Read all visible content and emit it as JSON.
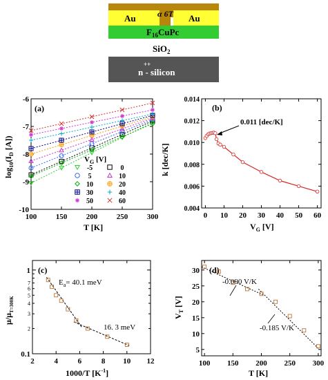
{
  "device": {
    "layers": [
      {
        "name": "gold-electrode-left",
        "label": "Au",
        "color": "#ffff33"
      },
      {
        "name": "alpha6t-layer",
        "label": "α 6T",
        "color": "#b8860b"
      },
      {
        "name": "gold-electrode-right",
        "label": "Au",
        "color": "#ffff33"
      },
      {
        "name": "f16cupc-layer",
        "label": "F",
        "sub": "16",
        "tail": "CuPc",
        "color": "#33cc33"
      },
      {
        "name": "sio2-layer",
        "label": "SiO",
        "sub": "2"
      },
      {
        "name": "silicon-substrate",
        "label": "n  - silicon",
        "sup": "++",
        "color": "#555555"
      }
    ]
  },
  "chart_data": [
    {
      "panel": "(a)",
      "type": "line",
      "xlabel": "T [K]",
      "ylabel": "log",
      "ylabel_sub": "10",
      "ylabel_paren": "(I",
      "ylabel_sub2": "D",
      "ylabel_tail": " [A])",
      "xlim": [
        100,
        300
      ],
      "ylim": [
        -10,
        -6
      ],
      "xticks": [
        100,
        150,
        200,
        250,
        300
      ],
      "yticks": [
        -10,
        -9,
        -8,
        -7,
        -6
      ],
      "legend_title": "V",
      "legend_title_sub": "G",
      "legend_title_tail": " [V]",
      "x": [
        100,
        125,
        150,
        175,
        200,
        225,
        250,
        275,
        300
      ],
      "series": [
        {
          "name": "-5",
          "marker": "triangle-down",
          "color": "#33cc33",
          "y0": -9.05,
          "y1": -6.85
        },
        {
          "name": "0",
          "marker": "square",
          "color": "#000000",
          "y0": -8.75,
          "y1": -6.8
        },
        {
          "name": "5",
          "marker": "circle",
          "color": "#3366ff",
          "y0": -8.5,
          "y1": -6.75
        },
        {
          "name": "10",
          "marker": "triangle-up",
          "color": "#cc33cc",
          "y0": -8.25,
          "y1": -6.7
        },
        {
          "name": "10",
          "marker": "diamond",
          "color": "#00aa00",
          "y0": -8.8,
          "y1": -6.9
        },
        {
          "name": "20",
          "marker": "circle-plus",
          "color": "#ff9900",
          "y0": -8.0,
          "y1": -6.65
        },
        {
          "name": "30",
          "marker": "square-plus",
          "color": "#000080",
          "y0": -7.8,
          "y1": -6.6
        },
        {
          "name": "40",
          "marker": "plus",
          "color": "#00aacc",
          "y0": -7.5,
          "y1": -6.55
        },
        {
          "name": "50",
          "marker": "asterisk",
          "color": "#cc33cc",
          "y0": -7.3,
          "y1": -6.4
        },
        {
          "name": "60",
          "marker": "x",
          "color": "#cc3333",
          "y0": -7.15,
          "y1": -6.15
        }
      ]
    },
    {
      "panel": "(b)",
      "type": "line",
      "xlabel": "V",
      "xlabel_sub": "G",
      "xlabel_tail": " [V]",
      "ylabel": "k [dec/K]",
      "xlim": [
        -2,
        62
      ],
      "ylim": [
        0.004,
        0.014
      ],
      "xticks": [
        0,
        10,
        20,
        30,
        40,
        50,
        60
      ],
      "yticks": [
        "0.004",
        "0.006",
        "0.008",
        "0.010",
        "0.012",
        "0.014"
      ],
      "annotation": "0.011 [dec/K]",
      "color": "#dd2222",
      "points": [
        [
          0,
          0.0104
        ],
        [
          0.7,
          0.0106
        ],
        [
          1.5,
          0.01075
        ],
        [
          2.2,
          0.01082
        ],
        [
          3,
          0.01085
        ],
        [
          3.8,
          0.01088
        ],
        [
          4.5,
          0.0109
        ],
        [
          5.3,
          0.01085
        ],
        [
          6,
          0.0103
        ],
        [
          7,
          0.0099
        ],
        [
          8,
          0.0098
        ],
        [
          10,
          0.0096
        ],
        [
          15,
          0.0089
        ],
        [
          20,
          0.0082
        ],
        [
          30,
          0.0073
        ],
        [
          40,
          0.0065
        ],
        [
          50,
          0.006
        ],
        [
          60,
          0.0055
        ]
      ]
    },
    {
      "panel": "(c)",
      "type": "scatter",
      "xlabel": "1000/T [K",
      "xlabel_sup": "-1",
      "xlabel_tail": "]",
      "ylabel": "μ/μ",
      "ylabel_sub": "T=300K",
      "xlim": [
        2,
        12
      ],
      "ylim": [
        0.1,
        1
      ],
      "ylog": true,
      "xticks": [
        2,
        4,
        6,
        8,
        10,
        12
      ],
      "yticks_major": [
        {
          "v": 0.1,
          "t": "0.1"
        },
        {
          "v": 1,
          "t": "1"
        }
      ],
      "yticks_minor": [
        {
          "v": 0.2,
          "t": "2"
        },
        {
          "v": 0.3,
          "t": "3"
        },
        {
          "v": 0.4,
          "t": "4"
        },
        {
          "v": 0.5,
          "t": "5"
        },
        {
          "v": 0.6,
          "t": "6"
        },
        {
          "v": 0.7,
          "t": "7"
        }
      ],
      "color": "#b87333",
      "points": [
        [
          3.33,
          0.76
        ],
        [
          3.64,
          0.63
        ],
        [
          4.0,
          0.5
        ],
        [
          4.44,
          0.43
        ],
        [
          5.0,
          0.34
        ],
        [
          5.71,
          0.25
        ],
        [
          6.67,
          0.2
        ],
        [
          8.33,
          0.16
        ],
        [
          10.0,
          0.128
        ]
      ],
      "fit1": {
        "label": "E",
        "label_sub": "a",
        "label_tail": "= 40.1 meV",
        "from": [
          3.2,
          0.82
        ],
        "to": [
          6.2,
          0.205
        ]
      },
      "fit2": {
        "label": "16. 3 meV",
        "from": [
          5.5,
          0.24
        ],
        "to": [
          10.2,
          0.125
        ]
      }
    },
    {
      "panel": "(d)",
      "type": "scatter",
      "xlabel": "T [K]",
      "ylabel": "V",
      "ylabel_sub": "T",
      "ylabel_tail": " [V]",
      "xlim": [
        95,
        305
      ],
      "ylim": [
        3,
        33
      ],
      "xticks": [
        100,
        150,
        200,
        250,
        300
      ],
      "yticks": [
        5,
        10,
        15,
        20,
        25,
        30
      ],
      "color": "#b87333",
      "points": [
        [
          100,
          31
        ],
        [
          125,
          29.5
        ],
        [
          150,
          26
        ],
        [
          175,
          24
        ],
        [
          200,
          22.5
        ],
        [
          225,
          20
        ],
        [
          250,
          15.5
        ],
        [
          275,
          11
        ],
        [
          300,
          6
        ]
      ],
      "fit1": {
        "label": "-0.090 V/K",
        "from": [
          95,
          31
        ],
        "to": [
          205,
          22
        ]
      },
      "fit2": {
        "label": "-0.185 V/K",
        "from": [
          195,
          24
        ],
        "to": [
          302,
          5
        ]
      }
    }
  ]
}
